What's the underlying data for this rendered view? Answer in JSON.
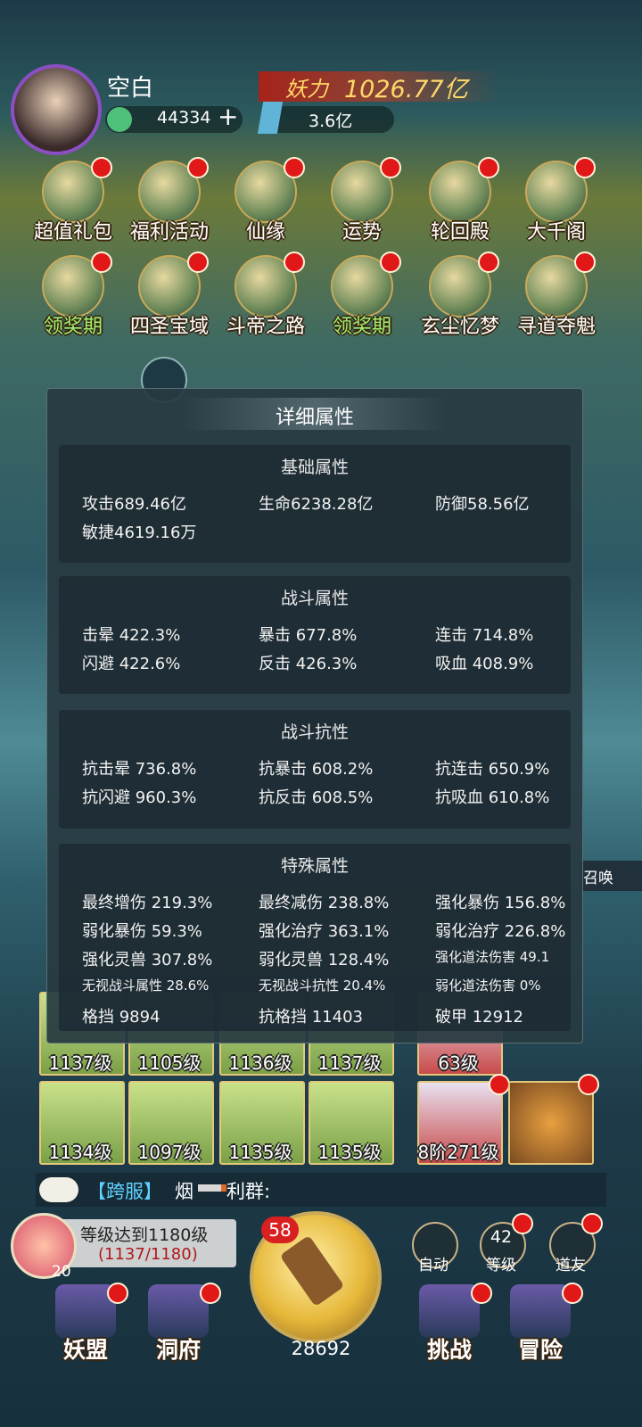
{
  "header": {
    "player_name": "空白",
    "power_label": "妖力",
    "power": "1026.77亿",
    "currency": "44334",
    "crystals": "3.6亿"
  },
  "features": [
    [
      "超值礼包",
      "福利活动",
      "仙缘",
      "运势",
      "轮回殿",
      "大千阁"
    ],
    [
      "领奖期",
      "四圣宝域",
      "斗帝之路",
      "领奖期",
      "玄尘忆梦",
      "寻道夺魁"
    ]
  ],
  "panel": {
    "title": "详细属性",
    "sections": [
      {
        "title": "基础属性",
        "items": [
          "攻击689.46亿",
          "生命6238.28亿",
          "防御58.56亿",
          "敏捷4619.16万"
        ]
      },
      {
        "title": "战斗属性",
        "items": [
          "击晕 422.3%",
          "暴击 677.8%",
          "连击 714.8%",
          "闪避 422.6%",
          "反击 426.3%",
          "吸血 408.9%"
        ]
      },
      {
        "title": "战斗抗性",
        "items": [
          "抗击晕 736.8%",
          "抗暴击 608.2%",
          "抗连击 650.9%",
          "抗闪避 960.3%",
          "抗反击 608.5%",
          "抗吸血 610.8%"
        ]
      },
      {
        "title": "特殊属性",
        "items": [
          "最终增伤 219.3%",
          "最终减伤 238.8%",
          "强化暴伤 156.8%",
          "弱化暴伤 59.3%",
          "强化治疗 363.1%",
          "弱化治疗 226.8%",
          "强化灵兽 307.8%",
          "弱化灵兽 128.4%",
          "强化道法伤害 49.1",
          "无视战斗属性 28.6%",
          "无视战斗抗性 20.4%",
          "弱化道法伤害 0%",
          "格挡 9894",
          "抗格挡 11403",
          "破甲 12912"
        ]
      }
    ]
  },
  "side": {
    "summon": "召唤"
  },
  "team": {
    "levels": [
      "1137级",
      "1105级",
      "1136级",
      "1137级",
      "1134级",
      "1097级",
      "1135级",
      "1135级"
    ],
    "extras": [
      "63级",
      "8阶271级"
    ]
  },
  "chat": {
    "channel": "【跨服】",
    "name_start": "烟",
    "name_end": "利群:"
  },
  "task": {
    "text": "等级达到1180级",
    "progress": "(1137/1180)",
    "count": "20"
  },
  "main_button": {
    "badge": "58",
    "count": "28692"
  },
  "quick": [
    {
      "label": "自动"
    },
    {
      "value": "42",
      "label": "等级"
    },
    {
      "label": "道友"
    }
  ],
  "nav": [
    "妖盟",
    "洞府",
    "挑战",
    "冒险"
  ]
}
